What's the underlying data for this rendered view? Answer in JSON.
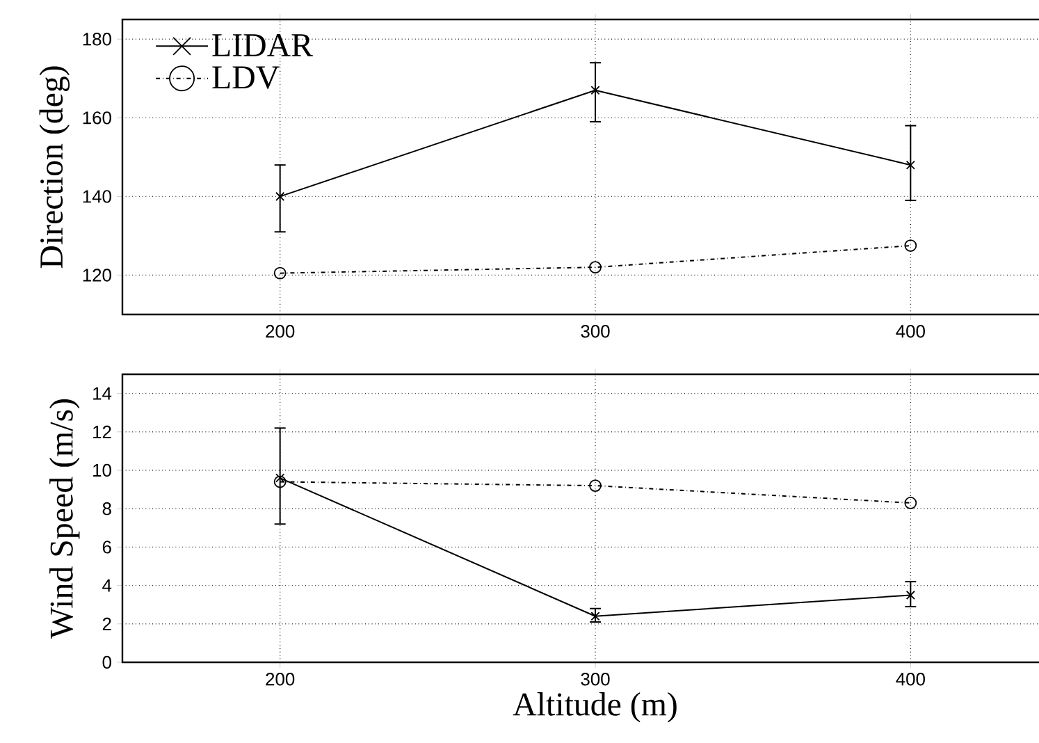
{
  "chart_data": [
    {
      "type": "line",
      "ylabel": "Direction (deg)",
      "x": [
        200,
        300,
        400
      ],
      "xlim": [
        150,
        450
      ],
      "xticks": [
        200,
        300,
        400
      ],
      "ylim": [
        110,
        185
      ],
      "yticks": [
        120,
        140,
        160,
        180
      ],
      "grid": true,
      "legend": "top left",
      "series": [
        {
          "name": "LIDAR",
          "color": "#000000",
          "marker": "cross",
          "line_style": "solid",
          "values": [
            140,
            167,
            148
          ],
          "errors": [
            [
              131,
              148
            ],
            [
              159,
              174
            ],
            [
              139,
              158
            ]
          ]
        },
        {
          "name": "LDV",
          "color": "#000000",
          "marker": "circle",
          "line_style": "dashed",
          "values": [
            120.5,
            122,
            127.5
          ]
        }
      ]
    },
    {
      "type": "line",
      "xlabel": "Altitude (m)",
      "ylabel": "Wind Speed (m/s)",
      "x": [
        200,
        300,
        400
      ],
      "xlim": [
        150,
        450
      ],
      "xticks": [
        200,
        300,
        400
      ],
      "ylim": [
        0,
        15
      ],
      "yticks": [
        0,
        2,
        4,
        6,
        8,
        10,
        12,
        14
      ],
      "grid": true,
      "series": [
        {
          "color": "#000000",
          "marker": "cross",
          "line_style": "solid",
          "values": [
            9.6,
            2.4,
            3.5
          ],
          "errors": [
            [
              7.2,
              12.2
            ],
            [
              2.1,
              2.8
            ],
            [
              2.9,
              4.2
            ]
          ]
        },
        {
          "color": "#000000",
          "marker": "circle",
          "line_style": "dashed",
          "values": [
            9.4,
            9.2,
            8.3
          ]
        }
      ]
    }
  ]
}
